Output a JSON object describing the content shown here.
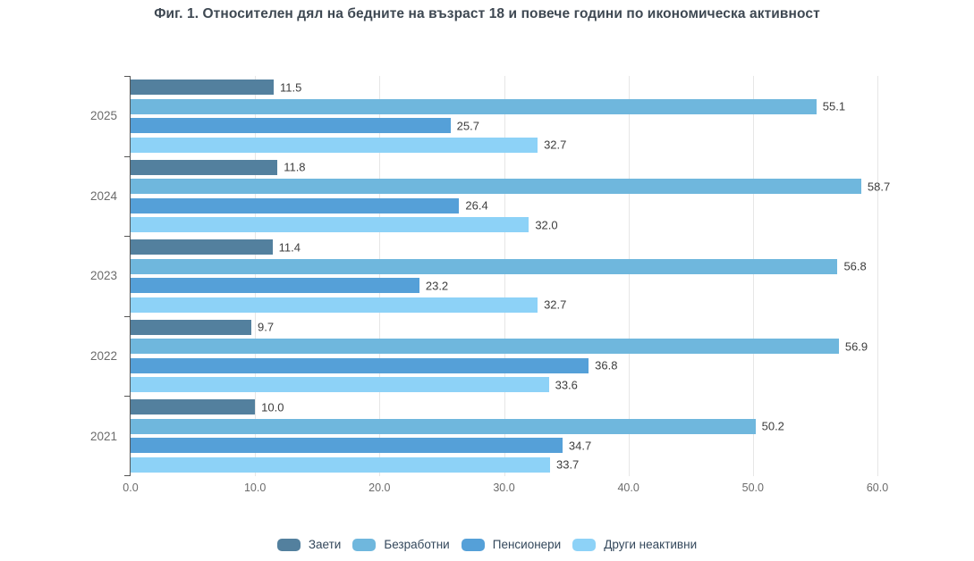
{
  "title": "Фиг. 1. Относителен дял на бедните на възраст 18 и повече години по икономическа активност",
  "chart_data": {
    "type": "bar",
    "orientation": "horizontal",
    "title": "Фиг. 1. Относителен дял на бедните на възраст 18 и повече години по икономическа активност",
    "categories": [
      "2025",
      "2024",
      "2023",
      "2022",
      "2021"
    ],
    "series": [
      {
        "name": "Заети",
        "color": "#53809e",
        "values": [
          11.5,
          11.8,
          11.4,
          9.7,
          10.0
        ]
      },
      {
        "name": "Безработни",
        "color": "#6fb7dd",
        "values": [
          55.1,
          58.7,
          56.8,
          56.9,
          50.2
        ]
      },
      {
        "name": "Пенсионери",
        "color": "#55a0d8",
        "values": [
          25.7,
          26.4,
          23.2,
          36.8,
          34.7
        ]
      },
      {
        "name": "Други неактивни",
        "color": "#8dd2f7",
        "values": [
          32.7,
          32.0,
          32.7,
          33.6,
          33.7
        ]
      }
    ],
    "x_ticks": [
      "0.0",
      "10.0",
      "20.0",
      "30.0",
      "40.0",
      "50.0",
      "60.0"
    ],
    "xlim": [
      0,
      60
    ],
    "xlabel": "",
    "ylabel": "",
    "grid": "vertical",
    "legend_position": "bottom",
    "value_labels": true,
    "value_label_decimals": 1
  },
  "colors": {
    "background": "#ffffff",
    "title_text": "#3e4852",
    "axis_line": "#555555",
    "gridline": "#e6e6e6",
    "tick_label_text": "#6b6b6b",
    "value_label_text": "#3d3d3d",
    "legend_text": "#33475b"
  }
}
